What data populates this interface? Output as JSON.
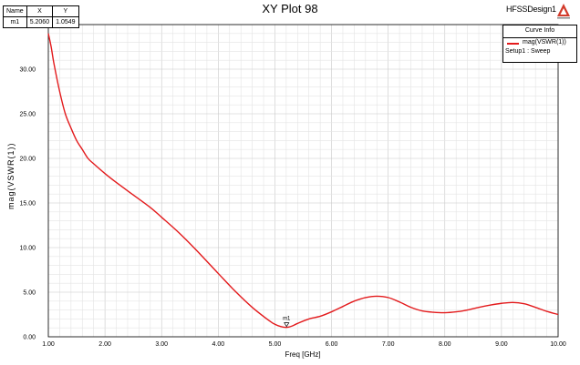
{
  "header": {
    "title": "XY Plot 98",
    "design_name": "HFSSDesign1"
  },
  "marker_table": {
    "headers": [
      "Name",
      "X",
      "Y"
    ],
    "rows": [
      [
        "m1",
        "5.2060",
        "1.0549"
      ]
    ]
  },
  "curve_info": {
    "title": "Curve Info",
    "series_name": "mag(VSWR(1))",
    "setup": "Setup1 : Sweep"
  },
  "colors": {
    "curve": "#e31a1c",
    "grid": "#c8c8c8",
    "grid_minor": "#e4e4e4"
  },
  "chart_data": {
    "type": "line",
    "title": "XY Plot 98",
    "xlabel": "Freq [GHz]",
    "ylabel": "mag(VSWR(1))",
    "xlim": [
      1.0,
      10.0
    ],
    "ylim": [
      0.0,
      35.0
    ],
    "grid": true,
    "legend": "top-right",
    "x_ticks": [
      "1.00",
      "2.00",
      "3.00",
      "4.00",
      "5.00",
      "6.00",
      "7.00",
      "8.00",
      "9.00",
      "10.00"
    ],
    "y_ticks": [
      "0.00",
      "5.00",
      "10.00",
      "15.00",
      "20.00",
      "25.00",
      "30.00"
    ],
    "series": [
      {
        "name": "mag(VSWR(1))",
        "x": [
          1.0,
          1.05,
          1.1,
          1.2,
          1.3,
          1.4,
          1.5,
          1.6,
          1.7,
          1.8,
          2.0,
          2.2,
          2.5,
          2.8,
          3.0,
          3.3,
          3.6,
          4.0,
          4.3,
          4.6,
          4.9,
          5.0,
          5.1,
          5.2,
          5.3,
          5.4,
          5.6,
          5.8,
          6.0,
          6.2,
          6.4,
          6.6,
          6.8,
          7.0,
          7.2,
          7.4,
          7.6,
          7.8,
          8.0,
          8.2,
          8.4,
          8.6,
          8.8,
          9.0,
          9.2,
          9.4,
          9.6,
          9.8,
          10.0
        ],
        "y": [
          34.0,
          32.5,
          30.6,
          27.5,
          25.0,
          23.4,
          22.0,
          21.0,
          20.0,
          19.4,
          18.3,
          17.3,
          15.9,
          14.5,
          13.4,
          11.7,
          9.8,
          7.1,
          5.1,
          3.3,
          1.8,
          1.4,
          1.15,
          1.05,
          1.2,
          1.5,
          2.0,
          2.3,
          2.8,
          3.4,
          4.0,
          4.4,
          4.55,
          4.4,
          3.9,
          3.3,
          2.9,
          2.75,
          2.7,
          2.8,
          3.0,
          3.3,
          3.55,
          3.75,
          3.85,
          3.7,
          3.3,
          2.85,
          2.5
        ]
      }
    ],
    "markers": [
      {
        "name": "m1",
        "x": 5.206,
        "y": 1.0549
      }
    ]
  }
}
